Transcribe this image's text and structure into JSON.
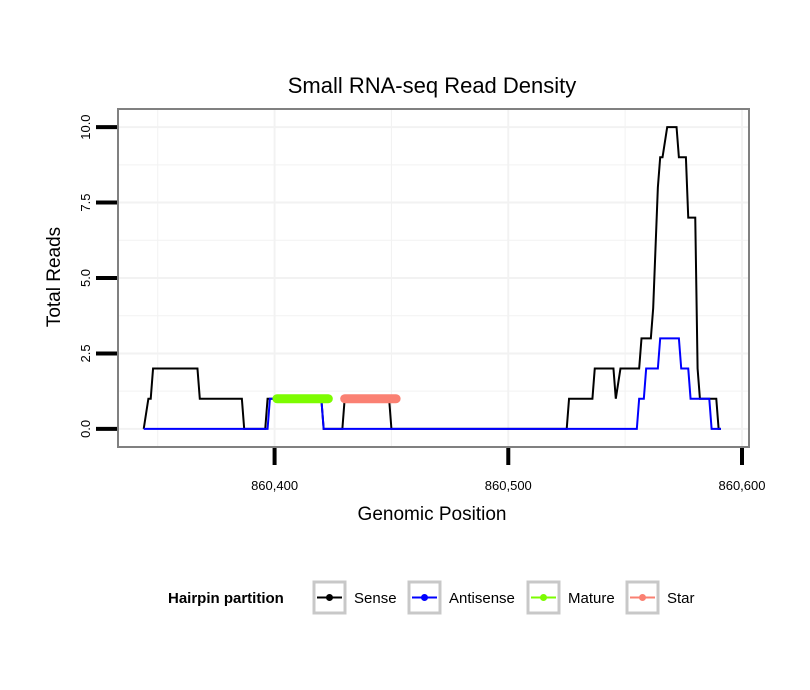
{
  "chart_data": {
    "type": "line",
    "title": "Small RNA-seq Read Density",
    "xlabel": "Genomic Position",
    "ylabel": "Total Reads",
    "xlim": [
      860333,
      860603
    ],
    "ylim": [
      -0.6,
      10.6
    ],
    "xticks": [
      860400,
      860500,
      860600
    ],
    "xtick_labels": [
      "860,400",
      "860,500",
      "860,600"
    ],
    "yticks": [
      0,
      2.5,
      5,
      7.5,
      10
    ],
    "ytick_labels": [
      "0.0",
      "2.5",
      "5.0",
      "7.5",
      "10.0"
    ],
    "grid": true,
    "legend": {
      "title": "Hairpin partition",
      "position": "bottom",
      "entries": [
        {
          "name": "Sense",
          "color": "#000000"
        },
        {
          "name": "Antisense",
          "color": "#0000ff"
        },
        {
          "name": "Mature",
          "color": "#7cfc00"
        },
        {
          "name": "Star",
          "color": "#fa8072"
        }
      ]
    },
    "series": [
      {
        "name": "Sense",
        "color": "#000000",
        "x": [
          860344,
          860346,
          860347,
          860348,
          860349,
          860367,
          860368,
          860386,
          860387,
          860396,
          860397,
          860420,
          860421,
          860424,
          860425,
          860429,
          860430,
          860431,
          860432,
          860449,
          860450,
          860525,
          860526,
          860536,
          860537,
          860545,
          860546,
          860548,
          860549,
          860550,
          860556,
          860557,
          860561,
          860562,
          860563,
          860564,
          860565,
          860566,
          860568,
          860569,
          860572,
          860573,
          860576,
          860577,
          860580,
          860581,
          860582,
          860583,
          860584,
          860589,
          860590,
          860591
        ],
        "y": [
          0,
          1,
          1,
          2,
          2,
          2,
          1,
          1,
          0,
          0,
          1,
          1,
          0,
          0,
          0,
          0,
          1,
          1,
          1,
          1,
          0,
          0,
          1,
          1,
          2,
          2,
          1,
          2,
          2,
          2,
          2,
          3,
          3,
          4,
          6,
          8,
          9,
          9,
          10,
          10,
          10,
          9,
          9,
          7,
          7,
          2,
          1,
          1,
          1,
          1,
          0,
          0
        ]
      },
      {
        "name": "Antisense",
        "color": "#0000ff",
        "x": [
          860344,
          860397,
          860398,
          860400,
          860401,
          860420,
          860421,
          860424,
          860425,
          860429,
          860430,
          860555,
          860556,
          860558,
          860559,
          860564,
          860565,
          860573,
          860574,
          860577,
          860578,
          860586,
          860587,
          860591
        ],
        "y": [
          0,
          0,
          1,
          1,
          1,
          1,
          0,
          0,
          0,
          0,
          0,
          0,
          1,
          1,
          2,
          2,
          3,
          3,
          2,
          2,
          1,
          1,
          0,
          0
        ]
      },
      {
        "name": "Mature",
        "color": "#7cfc00",
        "x": [
          860401,
          860423
        ],
        "y": [
          1,
          1
        ]
      },
      {
        "name": "Star",
        "color": "#fa8072",
        "x": [
          860430,
          860452
        ],
        "y": [
          1,
          1
        ]
      }
    ]
  }
}
